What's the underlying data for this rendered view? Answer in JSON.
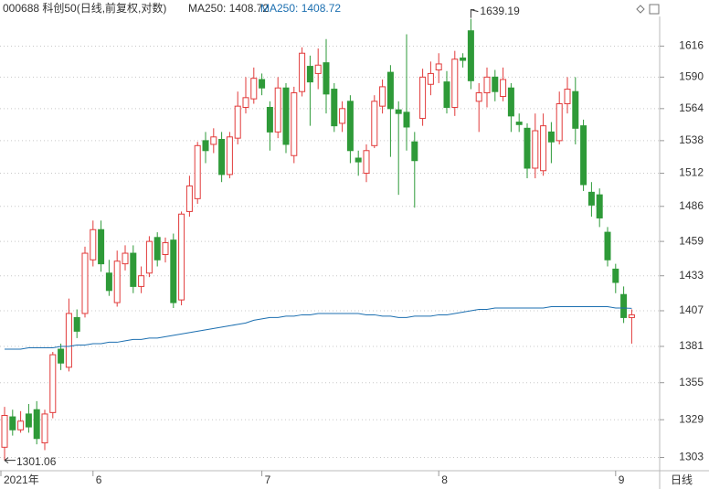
{
  "chart_data": {
    "type": "candlestick",
    "title": "000688 科创50(日线,前复权,对数)",
    "indicator_label": "MA250: 1408.72",
    "period": "日线",
    "log_scale": true,
    "grid": true,
    "up_color": "#e23a3a",
    "down_color": "#2e9a38",
    "ylim": [
      1294,
      1646
    ],
    "yticks": [
      1303,
      1329,
      1355,
      1381,
      1407,
      1433,
      1459,
      1486,
      1512,
      1538,
      1564,
      1590,
      1616
    ],
    "categories": [
      "2021年",
      null,
      null,
      null,
      null,
      null,
      null,
      null,
      null,
      null,
      null,
      "6",
      null,
      null,
      null,
      null,
      null,
      null,
      null,
      null,
      null,
      null,
      null,
      null,
      null,
      null,
      null,
      null,
      null,
      null,
      null,
      null,
      "7",
      null,
      null,
      null,
      null,
      null,
      null,
      null,
      null,
      null,
      null,
      null,
      null,
      null,
      null,
      null,
      null,
      null,
      null,
      null,
      null,
      null,
      "8",
      null,
      null,
      null,
      null,
      null,
      null,
      null,
      null,
      null,
      null,
      null,
      null,
      null,
      null,
      null,
      null,
      null,
      null,
      null,
      null,
      null,
      "9",
      null,
      null
    ],
    "open": [
      1310,
      1331,
      1322,
      1333,
      1336,
      1313,
      1334,
      1379,
      1366,
      1402,
      1405,
      1445,
      1468,
      1435,
      1413,
      1442,
      1450,
      1425,
      1435,
      1462,
      1449,
      1460,
      1415,
      1482,
      1492,
      1538,
      1535,
      1539,
      1511,
      1540,
      1565,
      1572,
      1588,
      1565,
      1545,
      1581,
      1526,
      1578,
      1599,
      1593,
      1602,
      1580,
      1552,
      1570,
      1524,
      1512,
      1534,
      1566,
      1594,
      1563,
      1561,
      1537,
      1556,
      1584,
      1596,
      1586,
      1565,
      1606,
      1629,
      1570,
      1577,
      1590,
      1574,
      1581,
      1553,
      1548,
      1516,
      1514,
      1545,
      1538,
      1568,
      1578,
      1550,
      1497,
      1495,
      1466,
      1438,
      1419,
      1402
    ],
    "high": [
      1338,
      1336,
      1335,
      1340,
      1342,
      1336,
      1377,
      1383,
      1416,
      1408,
      1455,
      1475,
      1475,
      1445,
      1452,
      1456,
      1456,
      1440,
      1463,
      1466,
      1462,
      1465,
      1482,
      1510,
      1537,
      1545,
      1548,
      1545,
      1545,
      1578,
      1590,
      1598,
      1593,
      1570,
      1590,
      1585,
      1582,
      1615,
      1608,
      1614,
      1622,
      1585,
      1570,
      1575,
      1530,
      1535,
      1575,
      1588,
      1600,
      1570,
      1626,
      1545,
      1597,
      1603,
      1610,
      1595,
      1612,
      1610,
      1639.19,
      1585,
      1598,
      1596,
      1598,
      1585,
      1560,
      1552,
      1560,
      1560,
      1553,
      1578,
      1590,
      1590,
      1555,
      1505,
      1500,
      1470,
      1442,
      1425,
      1408
    ],
    "low": [
      1301.06,
      1318,
      1320,
      1320,
      1312,
      1308,
      1330,
      1364,
      1363,
      1387,
      1402,
      1440,
      1436,
      1418,
      1410,
      1437,
      1420,
      1420,
      1432,
      1440,
      1443,
      1409,
      1411,
      1478,
      1488,
      1520,
      1528,
      1505,
      1508,
      1535,
      1560,
      1568,
      1575,
      1530,
      1540,
      1528,
      1520,
      1574,
      1550,
      1580,
      1560,
      1545,
      1545,
      1520,
      1510,
      1505,
      1532,
      1560,
      1525,
      1495,
      1530,
      1485,
      1550,
      1575,
      1585,
      1560,
      1558,
      1598,
      1580,
      1545,
      1565,
      1570,
      1570,
      1545,
      1545,
      1508,
      1508,
      1510,
      1520,
      1535,
      1560,
      1535,
      1498,
      1478,
      1470,
      1440,
      1420,
      1398,
      1383
    ],
    "close": [
      1332,
      1322,
      1328,
      1324,
      1316,
      1333,
      1375,
      1369,
      1405,
      1392,
      1450,
      1468,
      1442,
      1422,
      1444,
      1450,
      1425,
      1433,
      1459,
      1445,
      1458,
      1413,
      1480,
      1502,
      1534,
      1530,
      1541,
      1511,
      1541,
      1566,
      1573,
      1589,
      1581,
      1545,
      1581,
      1535,
      1577,
      1610,
      1586,
      1600,
      1576,
      1550,
      1564,
      1530,
      1521,
      1530,
      1570,
      1582,
      1564,
      1560,
      1549,
      1522,
      1590,
      1593,
      1601,
      1565,
      1605,
      1604,
      1587,
      1577,
      1590,
      1578,
      1588,
      1558,
      1551,
      1516,
      1546,
      1550,
      1537,
      1568,
      1580,
      1548,
      1503,
      1487,
      1477,
      1445,
      1428,
      1402,
      1404
    ],
    "series": [
      {
        "name": "MA250: 1408.72",
        "color": "#1c6fb0",
        "values": [
          1379,
          1379,
          1379,
          1380,
          1380,
          1380,
          1380,
          1381,
          1381,
          1382,
          1382,
          1383,
          1383,
          1384,
          1384,
          1385,
          1386,
          1386,
          1387,
          1387,
          1388,
          1389,
          1390,
          1391,
          1392,
          1393,
          1394,
          1395,
          1396,
          1397,
          1398,
          1400,
          1401,
          1402,
          1402,
          1403,
          1403,
          1404,
          1404,
          1405,
          1405,
          1405,
          1405,
          1405,
          1405,
          1404,
          1404,
          1403,
          1403,
          1402,
          1402,
          1403,
          1403,
          1403,
          1404,
          1404,
          1405,
          1406,
          1407,
          1408,
          1408,
          1409,
          1409,
          1409,
          1409,
          1409,
          1409,
          1409,
          1410,
          1410,
          1410,
          1410,
          1410,
          1410,
          1410,
          1410,
          1409,
          1409,
          1408.72
        ]
      }
    ],
    "max_label": 1639.19,
    "min_label": 1301.06
  }
}
